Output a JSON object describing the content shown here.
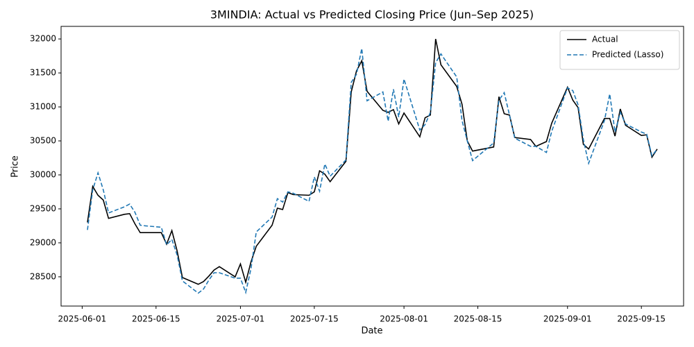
{
  "chart_data": {
    "type": "line",
    "title": "3MINDIA: Actual vs Predicted Closing Price (Jun–Sep 2025)",
    "x_label": "Date",
    "y_label": "Price",
    "x": [
      "2025-06-02",
      "2025-06-03",
      "2025-06-04",
      "2025-06-05",
      "2025-06-06",
      "2025-06-09",
      "2025-06-10",
      "2025-06-11",
      "2025-06-12",
      "2025-06-13",
      "2025-06-16",
      "2025-06-17",
      "2025-06-18",
      "2025-06-19",
      "2025-06-20",
      "2025-06-23",
      "2025-06-24",
      "2025-06-25",
      "2025-06-26",
      "2025-06-27",
      "2025-06-30",
      "2025-07-01",
      "2025-07-02",
      "2025-07-03",
      "2025-07-04",
      "2025-07-07",
      "2025-07-08",
      "2025-07-09",
      "2025-07-10",
      "2025-07-11",
      "2025-07-14",
      "2025-07-15",
      "2025-07-16",
      "2025-07-17",
      "2025-07-18",
      "2025-07-21",
      "2025-07-22",
      "2025-07-23",
      "2025-07-24",
      "2025-07-25",
      "2025-07-28",
      "2025-07-29",
      "2025-07-30",
      "2025-07-31",
      "2025-08-01",
      "2025-08-04",
      "2025-08-05",
      "2025-08-06",
      "2025-08-07",
      "2025-08-08",
      "2025-08-11",
      "2025-08-12",
      "2025-08-13",
      "2025-08-14",
      "2025-08-18",
      "2025-08-19",
      "2025-08-20",
      "2025-08-21",
      "2025-08-22",
      "2025-08-25",
      "2025-08-26",
      "2025-08-28",
      "2025-08-29",
      "2025-09-01",
      "2025-09-02",
      "2025-09-03",
      "2025-09-04",
      "2025-09-05",
      "2025-09-08",
      "2025-09-09",
      "2025-09-10",
      "2025-09-11",
      "2025-09-12",
      "2025-09-15",
      "2025-09-16",
      "2025-09-17",
      "2025-09-18"
    ],
    "series": [
      {
        "name": "Actual",
        "color": "#000000",
        "linestyle": "solid",
        "values": [
          29300,
          29830,
          29700,
          29630,
          29360,
          29420,
          29430,
          29280,
          29150,
          29150,
          29150,
          28980,
          29180,
          28880,
          28490,
          28390,
          28430,
          28510,
          28600,
          28650,
          28500,
          28690,
          28420,
          28720,
          28950,
          29260,
          29510,
          29490,
          29740,
          29710,
          29700,
          29750,
          30060,
          30010,
          29900,
          30200,
          31220,
          31530,
          31680,
          31230,
          30950,
          30920,
          30960,
          30750,
          30910,
          30560,
          30840,
          30880,
          32000,
          31620,
          31300,
          31040,
          30500,
          30350,
          30410,
          31150,
          30900,
          30880,
          30550,
          30520,
          30420,
          30490,
          30760,
          31290,
          31100,
          30990,
          30450,
          30380,
          30830,
          30830,
          30570,
          30970,
          30730,
          30580,
          30590,
          30260,
          30380
        ]
      },
      {
        "name": "Predicted (Lasso)",
        "color": "#1f77b4",
        "linestyle": "dashed",
        "values": [
          29190,
          29780,
          30030,
          29780,
          29440,
          29530,
          29570,
          29450,
          29260,
          29250,
          29230,
          28970,
          29050,
          28820,
          28440,
          28260,
          28320,
          28450,
          28560,
          28560,
          28480,
          28480,
          28270,
          28620,
          29160,
          29380,
          29650,
          29600,
          29750,
          29730,
          29610,
          29970,
          29760,
          30160,
          29980,
          30220,
          31360,
          31480,
          31860,
          31090,
          31220,
          30790,
          31260,
          30850,
          31410,
          30660,
          30740,
          30920,
          31650,
          31780,
          31440,
          30800,
          30500,
          30210,
          30470,
          31100,
          31210,
          30880,
          30540,
          30420,
          30420,
          30330,
          30640,
          31280,
          31240,
          31030,
          30520,
          30170,
          30800,
          31190,
          30630,
          30920,
          30750,
          30630,
          30600,
          30280,
          30380
        ]
      }
    ],
    "xlim": [
      "2025-05-28",
      "2025-09-23"
    ],
    "xticks": [
      "2025-06-01",
      "2025-06-15",
      "2025-07-01",
      "2025-07-15",
      "2025-08-01",
      "2025-08-15",
      "2025-09-01",
      "2025-09-15"
    ],
    "ylim": [
      28070,
      32185
    ],
    "yticks": [
      28500,
      29000,
      29500,
      30000,
      30500,
      31000,
      31500,
      32000
    ],
    "grid": false,
    "legend": "upper right"
  }
}
